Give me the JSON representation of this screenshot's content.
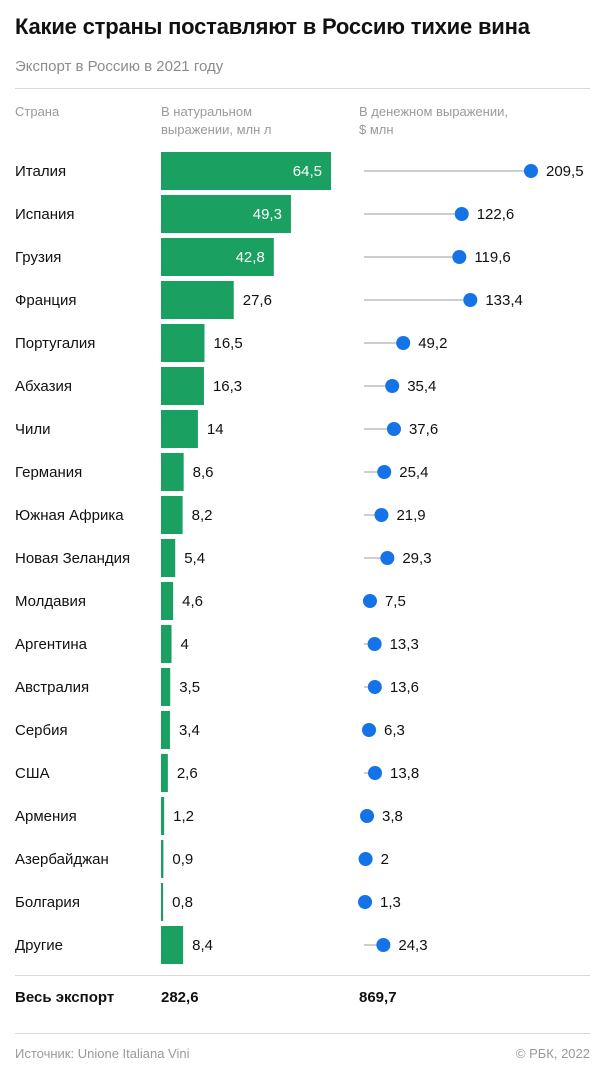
{
  "title": "Какие страны поставляют в Россию тихие вина",
  "subtitle": "Экспорт в Россию в 2021 году",
  "columns": {
    "country": "Страна",
    "volume_line1": "В натуральном",
    "volume_line2": "выражении, млн л",
    "money_line1": "В денежном выражении,",
    "money_line2": "$ млн"
  },
  "totals": {
    "label": "Весь экспорт",
    "volume": "282,6",
    "money": "869,7"
  },
  "footer": {
    "source": "Источник: Unione Italiana Vini",
    "copyright": "© РБК, 2022"
  },
  "colors": {
    "bar": "#1aa060",
    "dot": "#1473e6",
    "stem": "#9e9e9e"
  },
  "chart_data": {
    "type": "bar",
    "categories": [
      "Италия",
      "Испания",
      "Грузия",
      "Франция",
      "Португалия",
      "Абхазия",
      "Чили",
      "Германия",
      "Южная Африка",
      "Новая Зеландия",
      "Молдавия",
      "Аргентина",
      "Австралия",
      "Сербия",
      "США",
      "Армения",
      "Азербайджан",
      "Болгария",
      "Другие"
    ],
    "series": [
      {
        "name": "В натуральном выражении, млн л",
        "values": [
          64.5,
          49.3,
          42.8,
          27.6,
          16.5,
          16.3,
          14,
          8.6,
          8.2,
          5.4,
          4.6,
          4,
          3.5,
          3.4,
          2.6,
          1.2,
          0.9,
          0.8,
          8.4
        ],
        "labels": [
          "64,5",
          "49,3",
          "42,8",
          "27,6",
          "16,5",
          "16,3",
          "14",
          "8,6",
          "8,2",
          "5,4",
          "4,6",
          "4",
          "3,5",
          "3,4",
          "2,6",
          "1,2",
          "0,9",
          "0,8",
          "8,4"
        ]
      },
      {
        "name": "В денежном выражении, $ млн",
        "values": [
          209.5,
          122.6,
          119.6,
          133.4,
          49.2,
          35.4,
          37.6,
          25.4,
          21.9,
          29.3,
          7.5,
          13.3,
          13.6,
          6.3,
          13.8,
          3.8,
          2,
          1.3,
          24.3
        ],
        "labels": [
          "209,5",
          "122,6",
          "119,6",
          "133,4",
          "49,2",
          "35,4",
          "37,6",
          "25,4",
          "21,9",
          "29,3",
          "7,5",
          "13,3",
          "13,6",
          "6,3",
          "13,8",
          "3,8",
          "2",
          "1,3",
          "24,3"
        ]
      }
    ]
  }
}
